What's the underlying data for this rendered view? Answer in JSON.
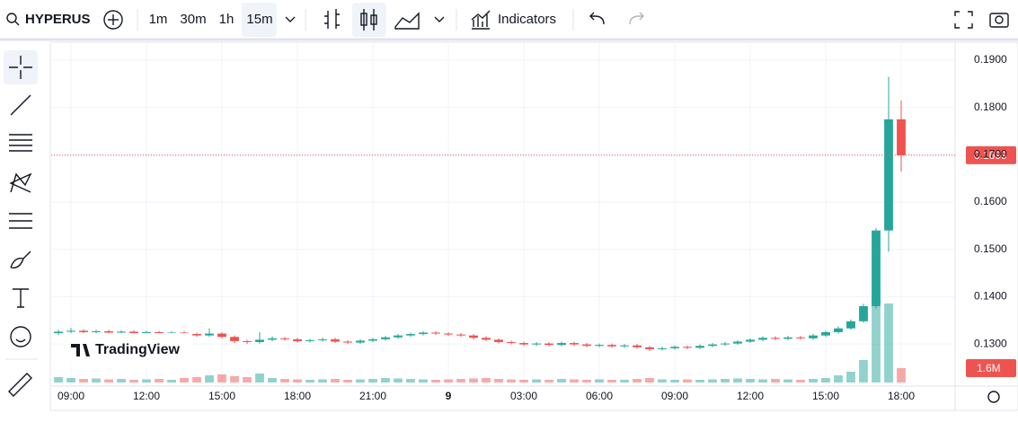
{
  "toolbar": {
    "symbol": "HYPERUS",
    "intervals": [
      "1m",
      "30m",
      "1h",
      "15m"
    ],
    "indicators": "Indicators"
  },
  "watermark": "TradingView",
  "chart_data": {
    "type": "candlestick",
    "categories": [
      null,
      "09:00",
      null,
      null,
      null,
      null,
      null,
      "12:00",
      null,
      null,
      null,
      null,
      null,
      "15:00",
      null,
      null,
      null,
      null,
      null,
      "18:00",
      null,
      null,
      null,
      null,
      null,
      "21:00",
      null,
      null,
      null,
      null,
      null,
      "9",
      null,
      null,
      null,
      null,
      null,
      "03:00",
      null,
      null,
      null,
      null,
      null,
      "06:00",
      null,
      null,
      null,
      null,
      null,
      "09:00",
      null,
      null,
      null,
      null,
      null,
      "12:00",
      null,
      null,
      null,
      null,
      null,
      "15:00",
      null,
      null,
      null,
      null,
      null,
      "18:00"
    ],
    "open": [
      0.1323,
      0.1326,
      0.1328,
      0.1325,
      0.1327,
      0.1324,
      0.1326,
      0.1323,
      0.1325,
      0.1322,
      0.1324,
      0.1321,
      0.1318,
      0.1322,
      0.1315,
      0.1306,
      0.1304,
      0.1309,
      0.1312,
      0.131,
      0.1306,
      0.1308,
      0.131,
      0.1305,
      0.1303,
      0.1307,
      0.131,
      0.1314,
      0.1318,
      0.1321,
      0.1324,
      0.1322,
      0.132,
      0.1318,
      0.1313,
      0.1309,
      0.1304,
      0.1302,
      0.1299,
      0.1301,
      0.1298,
      0.1302,
      0.1299,
      0.1296,
      0.1298,
      0.1295,
      0.1297,
      0.1293,
      0.1289,
      0.1291,
      0.1294,
      0.1292,
      0.1296,
      0.1299,
      0.1301,
      0.1305,
      0.1309,
      0.1313,
      0.1311,
      0.1314,
      0.1312,
      0.1318,
      0.1325,
      0.1333,
      0.1348,
      0.138,
      0.154,
      0.1775
    ],
    "high": [
      0.133,
      0.1334,
      0.1331,
      0.133,
      0.133,
      0.1329,
      0.1329,
      0.1328,
      0.1328,
      0.1327,
      0.1327,
      0.1324,
      0.1333,
      0.1325,
      0.1318,
      0.1309,
      0.1325,
      0.1316,
      0.1315,
      0.1313,
      0.1311,
      0.1313,
      0.1313,
      0.1308,
      0.131,
      0.1313,
      0.1317,
      0.1321,
      0.1324,
      0.1327,
      0.1327,
      0.1325,
      0.1323,
      0.1321,
      0.1316,
      0.1312,
      0.1307,
      0.1305,
      0.1304,
      0.1304,
      0.1305,
      0.1305,
      0.1302,
      0.1301,
      0.1301,
      0.13,
      0.13,
      0.1296,
      0.1294,
      0.1297,
      0.1297,
      0.1299,
      0.1302,
      0.1304,
      0.1308,
      0.1312,
      0.1316,
      0.1316,
      0.1317,
      0.1317,
      0.1321,
      0.1328,
      0.1337,
      0.1352,
      0.1385,
      0.1545,
      0.1865,
      0.1815
    ],
    "low": [
      0.1319,
      0.1322,
      0.1322,
      0.1322,
      0.1321,
      0.1321,
      0.132,
      0.132,
      0.1319,
      0.1319,
      0.1318,
      0.1315,
      0.1315,
      0.1312,
      0.1302,
      0.13,
      0.1301,
      0.1306,
      0.1307,
      0.1303,
      0.1303,
      0.1305,
      0.1302,
      0.13,
      0.13,
      0.1304,
      0.1307,
      0.1311,
      0.1315,
      0.1318,
      0.1319,
      0.1317,
      0.1315,
      0.131,
      0.1306,
      0.1301,
      0.1299,
      0.1296,
      0.1296,
      0.1295,
      0.1295,
      0.1296,
      0.1293,
      0.1293,
      0.1292,
      0.1292,
      0.129,
      0.1285,
      0.1286,
      0.1288,
      0.1289,
      0.1289,
      0.1293,
      0.1296,
      0.1298,
      0.1302,
      0.1306,
      0.1308,
      0.1308,
      0.1309,
      0.1309,
      0.1315,
      0.1322,
      0.133,
      0.1345,
      0.1375,
      0.1495,
      0.1665
    ],
    "close": [
      0.1326,
      0.1328,
      0.1325,
      0.1327,
      0.1324,
      0.1326,
      0.1323,
      0.1325,
      0.1322,
      0.1324,
      0.1321,
      0.1318,
      0.1322,
      0.1315,
      0.1306,
      0.1304,
      0.1309,
      0.1312,
      0.131,
      0.1306,
      0.1308,
      0.131,
      0.1305,
      0.1303,
      0.1307,
      0.131,
      0.1314,
      0.1318,
      0.1321,
      0.1324,
      0.1322,
      0.132,
      0.1318,
      0.1313,
      0.1309,
      0.1304,
      0.1302,
      0.1299,
      0.1301,
      0.1298,
      0.1302,
      0.1299,
      0.1296,
      0.1298,
      0.1295,
      0.1297,
      0.1293,
      0.1289,
      0.1291,
      0.1294,
      0.1292,
      0.1296,
      0.1299,
      0.1301,
      0.1305,
      0.1309,
      0.1313,
      0.1311,
      0.1314,
      0.1312,
      0.1318,
      0.1325,
      0.1333,
      0.1348,
      0.138,
      0.154,
      0.1775,
      0.1699
    ],
    "volume": [
      600000,
      500000,
      400000,
      450000,
      350000,
      400000,
      300000,
      350000,
      400000,
      300000,
      500000,
      600000,
      800000,
      900000,
      700000,
      600000,
      1000000,
      500000,
      400000,
      350000,
      300000,
      350000,
      400000,
      300000,
      350000,
      400000,
      500000,
      450000,
      400000,
      350000,
      300000,
      350000,
      400000,
      450000,
      500000,
      400000,
      350000,
      300000,
      350000,
      300000,
      400000,
      350000,
      300000,
      350000,
      300000,
      300000,
      400000,
      500000,
      350000,
      300000,
      350000,
      300000,
      350000,
      400000,
      450000,
      400000,
      350000,
      400000,
      350000,
      300000,
      400000,
      500000,
      800000,
      1200000,
      2500000,
      9500000,
      8800000,
      1600000
    ],
    "up_color": "#26a69a",
    "down_color": "#ef5350",
    "ylim": [
      0.1211,
      0.1938
    ],
    "yticks": [
      {
        "value": 0.13,
        "label": "0.1300"
      },
      {
        "value": 0.14,
        "label": "0.1400"
      },
      {
        "value": 0.15,
        "label": "0.1500"
      },
      {
        "value": 0.16,
        "label": "0.1600"
      },
      {
        "value": 0.17,
        "label": "0.1700"
      },
      {
        "value": 0.18,
        "label": "0.1800"
      },
      {
        "value": 0.19,
        "label": "0.1900"
      }
    ],
    "vlim": [
      0,
      10000000
    ],
    "last_price": {
      "value": 0.1699,
      "label": "0.1699"
    },
    "last_volume": {
      "value": 1600000,
      "label": "1.6M"
    },
    "grid": true
  }
}
